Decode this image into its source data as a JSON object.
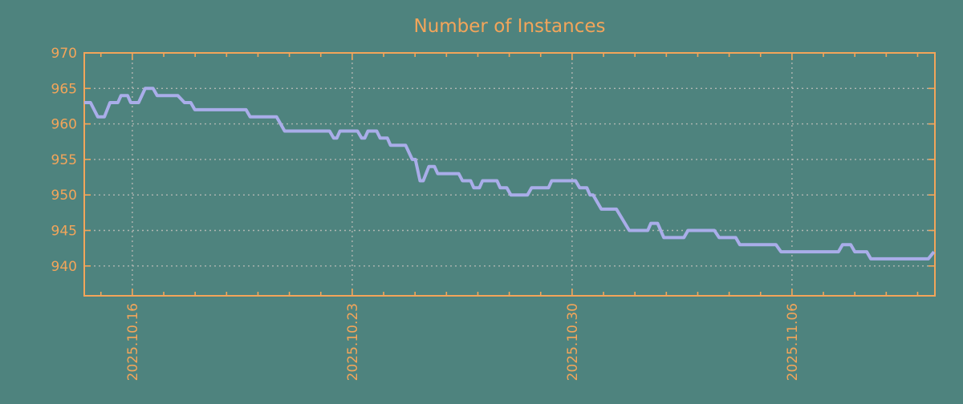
{
  "page": {
    "background_color": "#4e837e"
  },
  "chart_data": {
    "type": "line",
    "title": "Number of Instances",
    "title_color": "#f3a55a",
    "axis_color": "#f3a55a",
    "grid_color": "#b0b6b2",
    "line_color": "#a9ade9",
    "grid": "dashed",
    "legend": "none",
    "x_axis": {
      "unit": "days relative to 2025.10.16",
      "min": -1.53,
      "max": 25.55,
      "major_ticks": [
        {
          "label": "2025.10.16",
          "offset": 0
        },
        {
          "label": "2025.10.23",
          "offset": 7
        },
        {
          "label": "2025.10.30",
          "offset": 14
        },
        {
          "label": "2025.11.06",
          "offset": 21
        }
      ],
      "minor_tick_every_days": 1,
      "label_rotation_deg": -90
    },
    "y_axis": {
      "min": 935.8,
      "max": 970,
      "tick_step": 5,
      "ticks": [
        940,
        945,
        950,
        955,
        960,
        965,
        970
      ]
    },
    "series": [
      {
        "points": [
          [
            -1.53,
            963
          ],
          [
            -1.33,
            963
          ],
          [
            -1.1,
            961
          ],
          [
            -0.89,
            961
          ],
          [
            -0.71,
            963
          ],
          [
            -0.46,
            963
          ],
          [
            -0.36,
            964
          ],
          [
            -0.15,
            964
          ],
          [
            -0.05,
            963
          ],
          [
            0.2,
            963
          ],
          [
            0.41,
            965
          ],
          [
            0.66,
            965
          ],
          [
            0.79,
            964
          ],
          [
            1.45,
            964
          ],
          [
            1.66,
            963
          ],
          [
            1.86,
            963
          ],
          [
            1.99,
            962
          ],
          [
            3.62,
            962
          ],
          [
            3.75,
            961
          ],
          [
            4.59,
            961
          ],
          [
            4.85,
            959
          ],
          [
            6.28,
            959
          ],
          [
            6.41,
            958
          ],
          [
            6.51,
            958
          ],
          [
            6.61,
            959
          ],
          [
            7.17,
            959
          ],
          [
            7.3,
            958
          ],
          [
            7.4,
            958
          ],
          [
            7.5,
            959
          ],
          [
            7.78,
            959
          ],
          [
            7.89,
            958
          ],
          [
            8.12,
            958
          ],
          [
            8.22,
            957
          ],
          [
            8.7,
            957
          ],
          [
            8.91,
            955
          ],
          [
            9.01,
            955
          ],
          [
            9.16,
            952
          ],
          [
            9.26,
            952
          ],
          [
            9.44,
            954
          ],
          [
            9.62,
            954
          ],
          [
            9.72,
            953
          ],
          [
            10.39,
            953
          ],
          [
            10.51,
            952
          ],
          [
            10.77,
            952
          ],
          [
            10.87,
            951
          ],
          [
            11.05,
            951
          ],
          [
            11.15,
            952
          ],
          [
            11.61,
            952
          ],
          [
            11.71,
            951
          ],
          [
            11.92,
            951
          ],
          [
            12.05,
            950
          ],
          [
            12.58,
            950
          ],
          [
            12.71,
            951
          ],
          [
            13.25,
            951
          ],
          [
            13.35,
            952
          ],
          [
            14.11,
            952
          ],
          [
            14.24,
            951
          ],
          [
            14.47,
            951
          ],
          [
            14.57,
            950
          ],
          [
            14.67,
            950
          ],
          [
            14.93,
            948
          ],
          [
            15.41,
            948
          ],
          [
            15.82,
            945
          ],
          [
            16.41,
            945
          ],
          [
            16.51,
            946
          ],
          [
            16.72,
            946
          ],
          [
            16.92,
            944
          ],
          [
            17.56,
            944
          ],
          [
            17.69,
            945
          ],
          [
            18.53,
            945
          ],
          [
            18.68,
            944
          ],
          [
            19.21,
            944
          ],
          [
            19.34,
            943
          ],
          [
            20.49,
            943
          ],
          [
            20.65,
            942
          ],
          [
            22.48,
            942
          ],
          [
            22.61,
            943
          ],
          [
            22.87,
            943
          ],
          [
            23.0,
            942
          ],
          [
            23.38,
            942
          ],
          [
            23.51,
            941
          ],
          [
            25.34,
            941
          ],
          [
            25.52,
            942
          ]
        ]
      }
    ]
  }
}
